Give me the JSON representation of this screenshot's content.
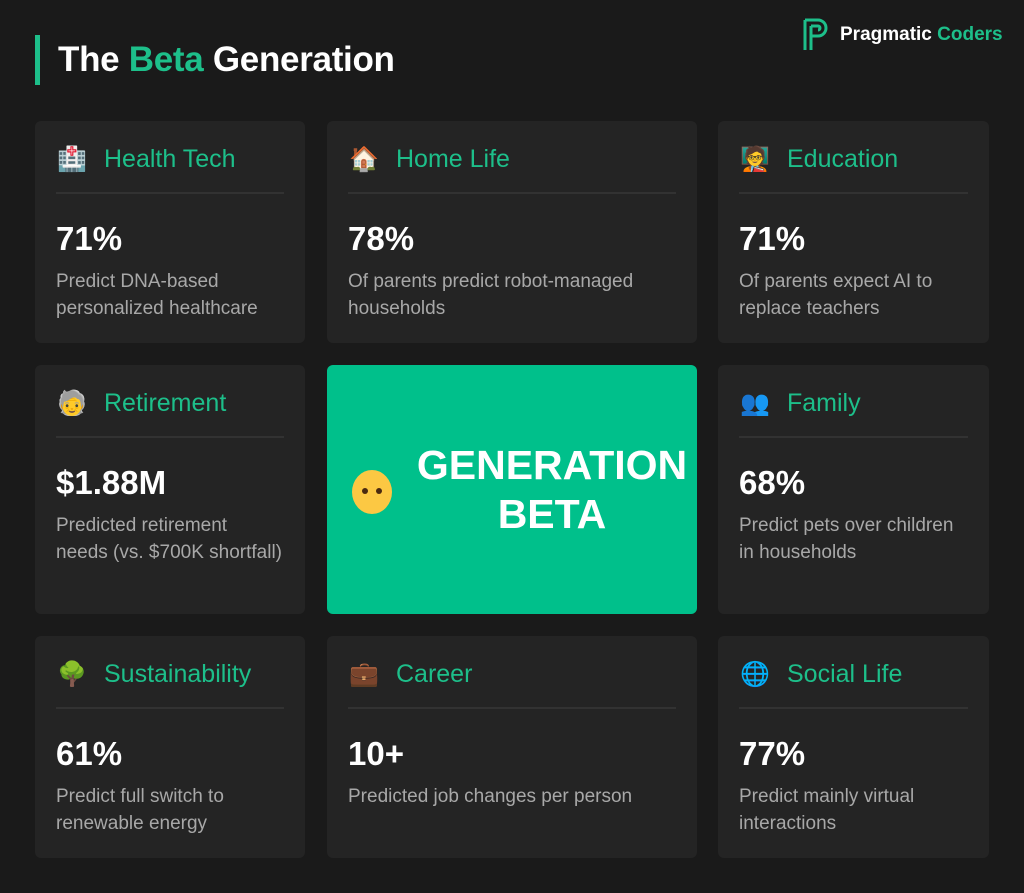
{
  "header": {
    "title_prefix": "The",
    "title_highlight": "Beta",
    "title_suffix": "Generation"
  },
  "logo": {
    "name_1": "Pragmatic",
    "name_2": "Coders"
  },
  "center": {
    "line1": "GENERATION",
    "line2": "BETA",
    "icon": "baby-icon"
  },
  "colors": {
    "accent": "#1dbf8a",
    "center_bg": "#00c08b",
    "background": "#1a1a1a",
    "card": "#242424"
  },
  "cards": [
    {
      "title": "Health Tech",
      "icon": "hospital-icon",
      "value": "71%",
      "desc": "Predict DNA-based personalized healthcare"
    },
    {
      "title": "Home Life",
      "icon": "house-icon",
      "value": "78%",
      "desc": "Of parents predict robot-managed households"
    },
    {
      "title": "Education",
      "icon": "teacher-icon",
      "value": "71%",
      "desc": "Of parents expect AI to replace teachers"
    },
    {
      "title": "Retirement",
      "icon": "older-person-icon",
      "value": "$1.88M",
      "desc": "Predicted retirement needs (vs. $700K shortfall)"
    },
    {
      "title": "Family",
      "icon": "family-silhouette-icon",
      "value": "68%",
      "desc": "Predict pets over children in households"
    },
    {
      "title": "Sustainability",
      "icon": "tree-icon",
      "value": "61%",
      "desc": "Predict full switch to renewable energy"
    },
    {
      "title": "Career",
      "icon": "briefcase-icon",
      "value": "10+",
      "desc": "Predicted job changes per person"
    },
    {
      "title": "Social Life",
      "icon": "globe-icon",
      "value": "77%",
      "desc": "Predict mainly virtual interactions"
    }
  ]
}
